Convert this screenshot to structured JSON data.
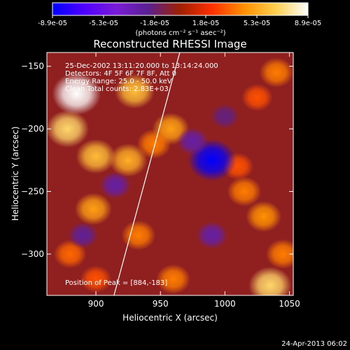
{
  "colorbar": {
    "tick_labels": [
      "-8.9e-05",
      "-5.3e-05",
      "-1.8e-05",
      "1.8e-05",
      "5.3e-05",
      "8.9e-05"
    ],
    "unit_label": "(photons cm⁻² s⁻¹ asec⁻²)",
    "colors": [
      "#0000ff",
      "#5000ff",
      "#7a1cd6",
      "#5a2090",
      "#a02000",
      "#ff3000",
      "#ff9000",
      "#ffd050",
      "#ffffff"
    ]
  },
  "chart_data": {
    "type": "heatmap",
    "title": "Reconstructed RHESSI Image",
    "xlabel": "Heliocentric X (arcsec)",
    "ylabel": "Heliocentric Y (arcsec)",
    "xlim": [
      862,
      1053
    ],
    "ylim": [
      -333,
      -139
    ],
    "x_ticks": [
      900,
      950,
      1000,
      1050
    ],
    "y_ticks": [
      -150,
      -200,
      -250,
      -300
    ],
    "x_tick_labels": [
      "900",
      "950",
      "1000",
      "1050"
    ],
    "y_tick_labels": [
      "−150",
      "−200",
      "−250",
      "−300"
    ],
    "value_range": [
      -8.9e-05,
      8.9e-05
    ],
    "annotations": [
      "25-Dec-2002 13:11:20.000 to 13:14:24.000",
      "Detectors: 4F 5F 6F 7F 8F, Att 0",
      "Energy Range: 25.0 - 50.0 keV",
      "Clean    Total counts: 2.83E+03"
    ],
    "peak_label": "Position of Peak = [884,-183]",
    "limb_line": {
      "x": [
        914,
        965
      ],
      "y": [
        -333,
        -139
      ]
    },
    "blobs": [
      {
        "x": 885,
        "y": -172,
        "v": 9e-05
      },
      {
        "x": 878,
        "y": -200,
        "v": 7e-05
      },
      {
        "x": 900,
        "y": -222,
        "v": 6e-05
      },
      {
        "x": 930,
        "y": -170,
        "v": 6e-05
      },
      {
        "x": 958,
        "y": -200,
        "v": 5e-05
      },
      {
        "x": 925,
        "y": -225,
        "v": 5.5e-05
      },
      {
        "x": 945,
        "y": -212,
        "v": 4e-05
      },
      {
        "x": 1040,
        "y": -155,
        "v": 4e-05
      },
      {
        "x": 1025,
        "y": -175,
        "v": 3e-05
      },
      {
        "x": 898,
        "y": -264,
        "v": 5e-05
      },
      {
        "x": 933,
        "y": -285,
        "v": 4e-05
      },
      {
        "x": 960,
        "y": -320,
        "v": 4e-05
      },
      {
        "x": 1015,
        "y": -250,
        "v": 4e-05
      },
      {
        "x": 1030,
        "y": -270,
        "v": 4.5e-05
      },
      {
        "x": 1045,
        "y": -300,
        "v": 4e-05
      },
      {
        "x": 1035,
        "y": -325,
        "v": 7e-05
      },
      {
        "x": 1010,
        "y": -230,
        "v": 3e-05
      },
      {
        "x": 880,
        "y": -300,
        "v": 3.5e-05
      },
      {
        "x": 900,
        "y": -320,
        "v": 3e-05
      },
      {
        "x": 990,
        "y": -225,
        "v": -8.9e-05
      },
      {
        "x": 975,
        "y": -210,
        "v": -3e-05
      },
      {
        "x": 915,
        "y": -245,
        "v": -3e-05
      },
      {
        "x": 990,
        "y": -285,
        "v": -3e-05
      },
      {
        "x": 890,
        "y": -285,
        "v": -2.5e-05
      },
      {
        "x": 1000,
        "y": -190,
        "v": -2e-05
      }
    ]
  },
  "footer": {
    "timestamp": "24-Apr-2013 06:02"
  }
}
